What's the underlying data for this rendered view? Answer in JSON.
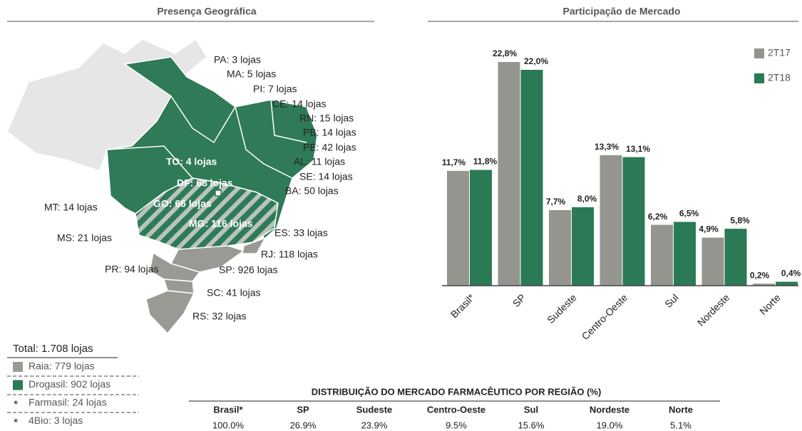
{
  "panels": {
    "left_title": "Presença Geográfica",
    "right_title": "Participação de Mercado"
  },
  "map": {
    "labels": [
      "PA: 3 lojas",
      "MA: 5 lojas",
      "PI: 7 lojas",
      "CE: 14 lojas",
      "RN: 15 lojas",
      "PB: 14 lojas",
      "PE: 42 lojas",
      "AL: 11 lojas",
      "SE: 14 lojas",
      "BA: 50 lojas",
      "TO: 4 lojas",
      "DF: 68 lojas",
      "GO: 66 lojas",
      "MG: 116 lojas",
      "MT: 14 lojas",
      "MS: 21 lojas",
      "ES: 33 lojas",
      "RJ: 118 lojas",
      "PR: 94 lojas",
      "SP: 926 lojas",
      "SC: 41 lojas",
      "RS: 32 lojas"
    ]
  },
  "legend": {
    "total": "Total: 1.708 lojas",
    "items": [
      {
        "label": "Raia: 779 lojas",
        "color": "#9a9a95"
      },
      {
        "label": "Drogasil: 902 lojas",
        "color": "#2a7a55"
      },
      {
        "label": "Farmasil: 24 lojas",
        "marker": "*"
      },
      {
        "label": "4Bio: 3 lojas",
        "marker": "*"
      }
    ]
  },
  "table": {
    "title": "DISTRIBUIÇÃO DO MERCADO FARMACÊUTICO POR REGIÃO (%)",
    "header": [
      "Brasil*",
      "SP",
      "Sudeste",
      "Centro-Oeste",
      "Sul",
      "Nordeste",
      "Norte"
    ],
    "rows": [
      [
        "100.0%",
        "26.9%",
        "23.9%",
        "9.5%",
        "15.6%",
        "19.0%",
        "5.1%"
      ]
    ]
  },
  "chart_data": {
    "type": "bar",
    "categories": [
      "Brasil*",
      "SP",
      "Sudeste",
      "Centro-Oeste",
      "Sul",
      "Nordeste",
      "Norte"
    ],
    "series": [
      {
        "name": "2T17",
        "color": "#959590",
        "values": [
          11.7,
          22.8,
          7.7,
          13.3,
          6.2,
          4.9,
          0.2
        ],
        "value_labels": [
          "11,7%",
          "22,8%",
          "7,7%",
          "13,3%",
          "6,2%",
          "4,9%",
          "0,2%"
        ]
      },
      {
        "name": "2T18",
        "color": "#2a7a55",
        "values": [
          11.8,
          22.0,
          8.0,
          13.1,
          6.5,
          5.8,
          0.4
        ],
        "value_labels": [
          "11,8%",
          "22,0%",
          "8,0%",
          "13,1%",
          "6,5%",
          "5,8%",
          "0,4%"
        ]
      }
    ],
    "legend": "top-right"
  }
}
